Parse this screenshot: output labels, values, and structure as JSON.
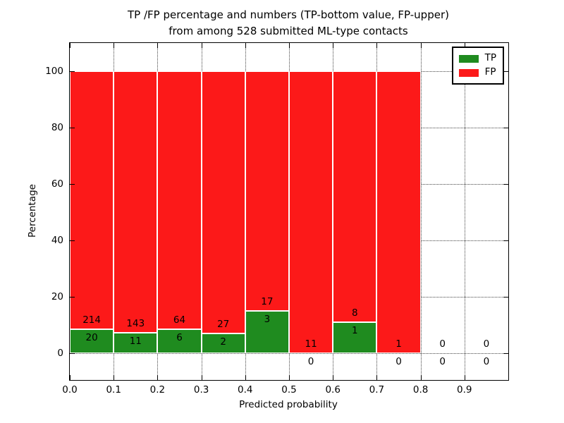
{
  "chart_data": {
    "type": "bar",
    "stacked": true,
    "title": "TP /FP percentage and numbers (TP-bottom value, FP-upper) from among 528 submitted ML-type contacts",
    "title_line1": "TP /FP percentage and numbers (TP-bottom value, FP-upper)",
    "title_line2": "from among 528 submitted ML-type contacts",
    "xlabel": "Predicted probability",
    "ylabel": "Percentage",
    "total_submitted": 528,
    "xlim": [
      0.0,
      1.0
    ],
    "ylim": [
      -9.5,
      110.5
    ],
    "grid": true,
    "legend_position": "upper right",
    "bin_width": 0.1,
    "bin_starts": [
      0.0,
      0.1,
      0.2,
      0.3,
      0.4,
      0.5,
      0.6,
      0.7,
      0.8,
      0.9
    ],
    "series": [
      {
        "name": "TP",
        "color": "#1f8b1f",
        "counts": [
          20,
          11,
          6,
          2,
          3,
          0,
          1,
          0,
          0,
          0
        ]
      },
      {
        "name": "FP",
        "color": "#fc1919",
        "counts": [
          214,
          143,
          64,
          27,
          17,
          11,
          8,
          1,
          0,
          0
        ]
      }
    ],
    "bars_reach_percent": 100,
    "xticks": [
      "0.0",
      "0.1",
      "0.2",
      "0.3",
      "0.4",
      "0.5",
      "0.6",
      "0.7",
      "0.8",
      "0.9"
    ],
    "yticks": [
      "0",
      "20",
      "40",
      "60",
      "80",
      "100"
    ]
  }
}
